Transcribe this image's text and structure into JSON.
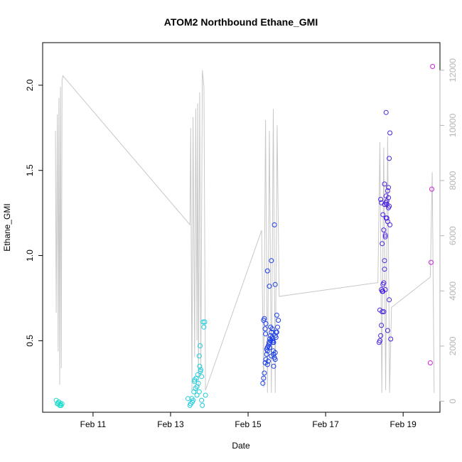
{
  "chart_data": {
    "type": "scatter",
    "title": "ATOM2 Northbound Ethane_GMI",
    "xlabel": "Date",
    "ylabel": "Ethane_GMI",
    "x_ticks": [
      "Feb 11",
      "Feb 13",
      "Feb 15",
      "Feb 17",
      "Feb 19"
    ],
    "x_tick_days": [
      11,
      13,
      15,
      17,
      19
    ],
    "xlim_days": [
      9.7,
      19.95
    ],
    "y_ticks": [
      "0.5",
      "1.0",
      "1.5",
      "2.0"
    ],
    "y_tick_values": [
      0.5,
      1.0,
      1.5,
      2.0
    ],
    "ylim": [
      0.08,
      2.25
    ],
    "y2_ticks": [
      "0",
      "2000",
      "4000",
      "6000",
      "8000",
      "10000",
      "12000"
    ],
    "y2_tick_values": [
      0,
      2000,
      4000,
      6000,
      8000,
      10000,
      12000
    ],
    "y2lim": [
      -400,
      13000
    ],
    "grid": false,
    "colors": {
      "point_cyan": "#22ccdd",
      "point_teal": "#22ddcc",
      "point_blue": "#1a3ee8",
      "point_indigo": "#4a22e0",
      "point_magenta": "#cc22dd",
      "altitude_line": "#c8c8c8"
    },
    "series": [
      {
        "color": "#22ddcc",
        "x": [
          10.05,
          10.08,
          10.1,
          10.12,
          10.14,
          10.16,
          10.18,
          10.2,
          10.11,
          10.15
        ],
        "y": [
          0.15,
          0.13,
          0.13,
          0.14,
          0.12,
          0.13,
          0.12,
          0.13,
          0.14,
          0.12
        ]
      },
      {
        "color": "#22ccdd",
        "x": [
          13.45,
          13.5,
          13.52,
          13.55,
          13.58,
          13.6,
          13.62,
          13.64,
          13.66,
          13.68,
          13.7,
          13.72,
          13.74,
          13.75,
          13.76,
          13.77,
          13.78,
          13.8,
          13.82,
          13.84,
          13.86,
          13.88,
          13.9,
          13.62,
          13.68,
          13.74,
          13.8,
          13.56
        ],
        "y": [
          0.16,
          0.12,
          0.13,
          0.16,
          0.15,
          0.2,
          0.26,
          0.22,
          0.28,
          0.18,
          0.3,
          0.25,
          0.41,
          0.35,
          0.47,
          0.32,
          0.33,
          0.29,
          0.12,
          0.61,
          0.58,
          0.61,
          0.18,
          0.27,
          0.23,
          0.2,
          0.15,
          0.14
        ]
      },
      {
        "color": "#1a3ee8",
        "x": [
          15.38,
          15.4,
          15.42,
          15.44,
          15.46,
          15.48,
          15.5,
          15.52,
          15.54,
          15.56,
          15.58,
          15.6,
          15.62,
          15.64,
          15.66,
          15.68,
          15.7,
          15.72,
          15.74,
          15.76,
          15.42,
          15.46,
          15.5,
          15.54,
          15.58,
          15.62,
          15.66,
          15.7,
          15.74,
          15.78,
          15.4,
          15.44,
          15.48,
          15.52,
          15.56,
          15.6,
          15.64,
          15.68,
          15.72,
          15.5,
          15.55,
          15.6,
          15.65,
          15.7,
          15.45,
          15.5,
          15.58,
          15.62,
          15.66,
          15.7
        ],
        "y": [
          0.25,
          0.28,
          0.31,
          0.37,
          0.39,
          0.42,
          0.44,
          0.47,
          0.49,
          0.51,
          0.53,
          0.55,
          0.57,
          0.5,
          0.42,
          0.4,
          0.43,
          0.52,
          0.55,
          0.58,
          0.63,
          0.6,
          0.46,
          0.48,
          0.5,
          0.52,
          0.35,
          0.83,
          0.65,
          0.62,
          0.62,
          0.57,
          0.45,
          0.38,
          0.46,
          0.97,
          0.49,
          1.18,
          0.55,
          0.91,
          0.82,
          0.41,
          0.44,
          0.39,
          0.54,
          0.36,
          0.58,
          0.51,
          0.49,
          0.53
        ]
      },
      {
        "color": "#4a22e0",
        "x": [
          18.38,
          18.4,
          18.42,
          18.44,
          18.46,
          18.48,
          18.5,
          18.52,
          18.54,
          18.56,
          18.58,
          18.6,
          18.62,
          18.64,
          18.66,
          18.68,
          18.42,
          18.46,
          18.5,
          18.54,
          18.58,
          18.62,
          18.66,
          18.44,
          18.48,
          18.52,
          18.56,
          18.6,
          18.64,
          18.4,
          18.46,
          18.52,
          18.58,
          18.62,
          18.56,
          18.6,
          18.64,
          18.48,
          18.52,
          18.56,
          18.44,
          18.5,
          18.54
        ],
        "y": [
          0.49,
          0.5,
          0.53,
          0.59,
          0.67,
          0.79,
          0.84,
          0.97,
          1.12,
          1.22,
          1.3,
          1.38,
          1.4,
          1.57,
          1.72,
          0.51,
          1.33,
          1.07,
          1.15,
          1.11,
          1.22,
          1.28,
          1.18,
          0.8,
          0.83,
          0.92,
          1.31,
          0.56,
          0.74,
          0.68,
          0.79,
          1.42,
          1.32,
          1.34,
          1.84,
          1.2,
          1.29,
          1.24,
          1.3,
          1.35,
          1.31,
          0.67,
          0.8
        ]
      },
      {
        "color": "#cc22dd",
        "x": [
          19.7,
          19.72,
          19.74,
          19.76
        ],
        "y": [
          0.37,
          0.96,
          1.39,
          2.11
        ]
      }
    ],
    "altitude_path": {
      "x": [
        10.03,
        10.05,
        10.08,
        10.1,
        10.12,
        10.14,
        10.16,
        10.18,
        10.2,
        10.22,
        13.5,
        13.52,
        13.55,
        13.58,
        13.62,
        13.65,
        13.68,
        13.7,
        13.72,
        13.75,
        13.78,
        13.82,
        13.86,
        13.9,
        15.35,
        15.4,
        15.45,
        15.5,
        15.55,
        15.6,
        15.65,
        15.7,
        15.75,
        15.8,
        18.35,
        18.4,
        18.45,
        18.5,
        18.55,
        18.6,
        18.65,
        18.7,
        19.7,
        19.75,
        19.8
      ],
      "y": [
        9800,
        3200,
        10400,
        1800,
        11000,
        600,
        11400,
        1200,
        11600,
        11800,
        6400,
        9900,
        400,
        10300,
        1600,
        10600,
        2200,
        10800,
        500,
        11200,
        900,
        12000,
        11400,
        400,
        6200,
        500,
        10200,
        300,
        9800,
        300,
        10600,
        300,
        10000,
        3800,
        4300,
        9400,
        300,
        9200,
        400,
        9600,
        300,
        3400,
        4500,
        8300,
        300
      ]
    }
  }
}
